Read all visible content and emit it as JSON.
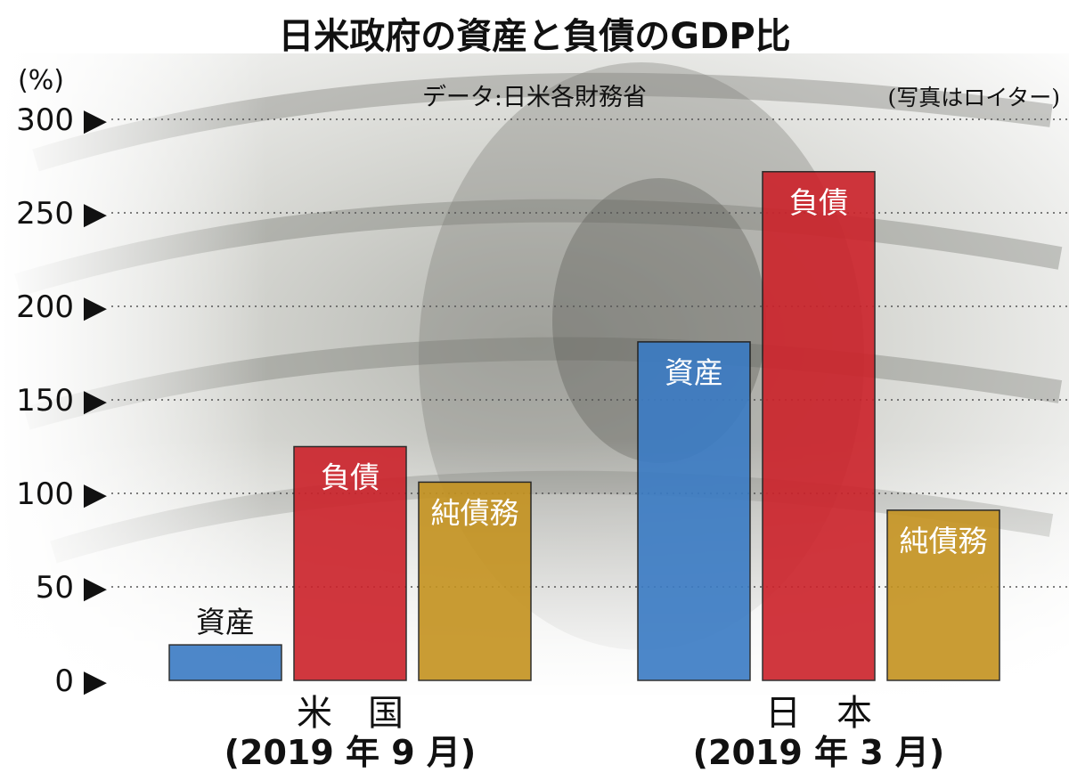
{
  "title": "日米政府の資産と負債のGDP比",
  "source": "データ:日米各財務省",
  "photo_credit": "(写真はロイター)",
  "unit": "(%)",
  "colors": {
    "asset": "#3a7bc4",
    "liability": "#cc222a",
    "net_debt": "#c4921f"
  },
  "chart_data": {
    "type": "bar",
    "ylabel": "(%)",
    "ylim": [
      0,
      300
    ],
    "yticks": [
      0,
      50,
      100,
      150,
      200,
      250,
      300
    ],
    "ytick_labels": [
      "0 ▶",
      "50 ▶",
      "100 ▶",
      "150 ▶",
      "200 ▶",
      "250 ▶",
      "300 ▶"
    ],
    "grid": true,
    "groups": [
      {
        "name": "米　国",
        "period": "(2019 年 9 月)",
        "bars": [
          {
            "label": "資産",
            "value": 19,
            "color": "#3a7bc4"
          },
          {
            "label": "負債",
            "value": 125,
            "color": "#cc222a"
          },
          {
            "label": "純債務",
            "value": 106,
            "color": "#c4921f"
          }
        ]
      },
      {
        "name": "日　本",
        "period": "(2019 年 3 月)",
        "bars": [
          {
            "label": "資産",
            "value": 181,
            "color": "#3a7bc4"
          },
          {
            "label": "負債",
            "value": 272,
            "color": "#cc222a"
          },
          {
            "label": "純債務",
            "value": 91,
            "color": "#c4921f"
          }
        ]
      }
    ]
  }
}
